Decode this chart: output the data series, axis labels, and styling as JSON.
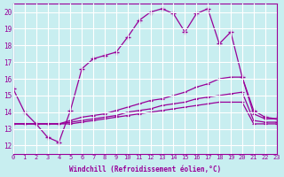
{
  "xlabel": "Windchill (Refroidissement éolien,°C)",
  "background_color": "#c8eef0",
  "grid_color": "#ffffff",
  "line_color": "#990099",
  "xlim": [
    0,
    23
  ],
  "ylim": [
    11.5,
    20.5
  ],
  "xticks": [
    0,
    1,
    2,
    3,
    4,
    5,
    6,
    7,
    8,
    9,
    10,
    11,
    12,
    13,
    14,
    15,
    16,
    17,
    18,
    19,
    20,
    21,
    22,
    23
  ],
  "yticks": [
    12,
    13,
    14,
    15,
    16,
    17,
    18,
    19,
    20
  ],
  "line1_x": [
    0,
    1,
    2,
    3,
    4,
    5,
    6,
    7,
    8,
    9,
    10,
    11,
    12,
    13,
    14,
    15,
    16,
    17,
    18,
    19,
    20,
    21,
    22,
    23
  ],
  "line1_y": [
    15.4,
    14.0,
    13.3,
    12.5,
    12.2,
    14.1,
    16.6,
    17.2,
    17.4,
    17.6,
    18.5,
    19.5,
    20.0,
    20.2,
    19.9,
    18.8,
    19.9,
    20.2,
    18.1,
    18.8,
    16.1,
    14.1,
    13.7,
    13.6
  ],
  "line2_x": [
    0,
    1,
    2,
    3,
    4,
    5,
    6,
    7,
    8,
    9,
    10,
    11,
    12,
    13,
    14,
    15,
    16,
    17,
    18,
    19,
    20,
    21,
    22,
    23
  ],
  "line2_y": [
    13.3,
    13.3,
    13.3,
    13.3,
    13.3,
    13.5,
    13.7,
    13.8,
    13.9,
    14.1,
    14.3,
    14.5,
    14.7,
    14.8,
    15.0,
    15.2,
    15.5,
    15.7,
    16.0,
    16.1,
    16.1,
    13.9,
    13.6,
    13.6
  ],
  "line3_x": [
    0,
    1,
    2,
    3,
    4,
    5,
    6,
    7,
    8,
    9,
    10,
    11,
    12,
    13,
    14,
    15,
    16,
    17,
    18,
    19,
    20,
    21,
    22,
    23
  ],
  "line3_y": [
    13.3,
    13.3,
    13.3,
    13.3,
    13.3,
    13.4,
    13.5,
    13.6,
    13.7,
    13.8,
    14.0,
    14.1,
    14.2,
    14.4,
    14.5,
    14.6,
    14.8,
    14.9,
    15.0,
    15.1,
    15.2,
    13.5,
    13.4,
    13.4
  ],
  "line4_x": [
    0,
    1,
    2,
    3,
    4,
    5,
    6,
    7,
    8,
    9,
    10,
    11,
    12,
    13,
    14,
    15,
    16,
    17,
    18,
    19,
    20,
    21,
    22,
    23
  ],
  "line4_y": [
    13.3,
    13.3,
    13.3,
    13.3,
    13.3,
    13.3,
    13.4,
    13.5,
    13.6,
    13.7,
    13.8,
    13.9,
    14.0,
    14.1,
    14.2,
    14.3,
    14.4,
    14.5,
    14.6,
    14.6,
    14.6,
    13.3,
    13.3,
    13.3
  ]
}
